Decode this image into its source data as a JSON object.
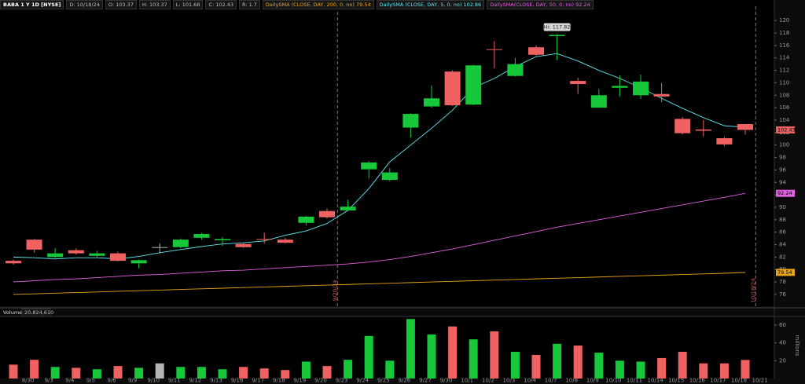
{
  "chart_data": [
    {
      "type": "candlestick",
      "title": "BABA 1 Y 1D [NYSE]",
      "date_label": "D: 10/18/24",
      "open_label": "O:",
      "high_label": "H:",
      "low_label": "L:",
      "close_label": "C:",
      "range_label": "R: 1.7",
      "hi_label": "Hi:",
      "events": [
        "9/20/24",
        "10/18/24"
      ],
      "categories": [
        null,
        "8/30",
        "9/3",
        "9/4",
        "9/5",
        "9/6",
        "9/9",
        "9/10",
        "9/11",
        "9/12",
        "9/13",
        "9/16",
        "9/17",
        "9/18",
        "9/19",
        "9/20",
        "9/23",
        "9/24",
        "9/25",
        "9/26",
        "9/27",
        "9/30",
        "10/1",
        "10/2",
        "10/3",
        "10/4",
        "10/7",
        "10/8",
        "10/9",
        "10/10",
        "10/11",
        "10/14",
        "10/15",
        "10/16",
        "10/17",
        "10/18",
        "10/21"
      ],
      "open": [
        81.4,
        84.8,
        82.0,
        83.1,
        82.2,
        82.6,
        81.0,
        83.6,
        83.6,
        85.1,
        84.7,
        84.1,
        84.9,
        84.8,
        87.5,
        89.4,
        89.5,
        96.1,
        94.4,
        102.8,
        106.2,
        111.8,
        106.5,
        115.4,
        111.1,
        115.7,
        117.5,
        110.3,
        106.0,
        109.2,
        108.0,
        108.2,
        104.2,
        102.5,
        101.1,
        103.37,
        null
      ],
      "high": [
        81.6,
        84.9,
        83.4,
        83.4,
        83.0,
        82.9,
        81.6,
        84.2,
        85.0,
        85.9,
        85.2,
        84.3,
        85.9,
        85.1,
        88.6,
        89.8,
        91.2,
        97.4,
        96.3,
        105.1,
        109.6,
        112.0,
        112.9,
        116.7,
        114.0,
        116.0,
        117.82,
        110.8,
        109.0,
        111.2,
        111.3,
        110.0,
        104.5,
        104.0,
        101.3,
        103.37,
        null
      ],
      "low": [
        80.8,
        82.7,
        81.9,
        82.4,
        81.9,
        81.3,
        80.2,
        82.6,
        83.4,
        84.8,
        83.8,
        83.5,
        84.2,
        84.2,
        87.1,
        88.2,
        89.4,
        94.6,
        94.2,
        101.2,
        106.0,
        106.3,
        106.4,
        112.3,
        111.0,
        114.3,
        113.6,
        108.2,
        106.0,
        107.8,
        107.4,
        106.9,
        101.7,
        101.4,
        99.8,
        101.68,
        null
      ],
      "close": [
        81.0,
        83.2,
        82.6,
        82.6,
        82.6,
        81.4,
        81.5,
        83.6,
        84.8,
        85.7,
        84.9,
        83.6,
        84.8,
        84.3,
        88.5,
        88.4,
        90.1,
        97.2,
        95.6,
        105.0,
        107.5,
        106.4,
        112.8,
        115.3,
        113.0,
        114.5,
        117.7,
        109.8,
        108.0,
        109.5,
        110.2,
        107.8,
        101.9,
        102.3,
        100.1,
        102.43,
        null
      ],
      "up_color": "#16c83a",
      "down_color": "#f06262",
      "neutral_color": "#b4b4b4",
      "series": [
        {
          "name": "DailySMA (CLOSE, DAY, 200, 0, no)",
          "color": "#e8a317",
          "values": [
            76.0,
            76.1,
            76.2,
            76.3,
            76.4,
            76.5,
            76.6,
            76.7,
            76.8,
            76.9,
            77.0,
            77.1,
            77.2,
            77.3,
            77.4,
            77.5,
            77.6,
            77.7,
            77.8,
            77.9,
            78.0,
            78.1,
            78.2,
            78.3,
            78.4,
            78.5,
            78.6,
            78.7,
            78.8,
            78.9,
            79.0,
            79.1,
            79.2,
            79.3,
            79.4,
            79.54,
            null
          ]
        },
        {
          "name": "DailySMA (CLOSE, DAY, 5, 0, no)",
          "color": "#5ee8f0",
          "values": [
            82.0,
            81.9,
            81.7,
            81.9,
            81.9,
            81.7,
            82.1,
            82.7,
            83.2,
            83.7,
            84.1,
            84.3,
            84.6,
            85.5,
            86.2,
            87.4,
            89.5,
            93.0,
            97.3,
            100.0,
            102.7,
            105.6,
            109.2,
            110.7,
            112.6,
            114.2,
            114.7,
            113.5,
            112.0,
            110.7,
            109.2,
            107.5,
            105.9,
            104.4,
            103.1,
            102.86,
            null
          ]
        },
        {
          "name": "DailySMA(CLOSE, DAY, 50, 0, no)",
          "color": "#e060e0",
          "values": [
            78.0,
            78.2,
            78.4,
            78.5,
            78.7,
            78.9,
            79.1,
            79.2,
            79.4,
            79.6,
            79.8,
            79.9,
            80.1,
            80.3,
            80.5,
            80.7,
            80.9,
            81.2,
            81.6,
            82.1,
            82.7,
            83.3,
            84.0,
            84.7,
            85.4,
            86.1,
            86.8,
            87.4,
            88.0,
            88.6,
            89.2,
            89.8,
            90.4,
            91.0,
            91.6,
            92.24,
            null
          ]
        }
      ],
      "ylim": [
        74.1,
        123.3
      ],
      "yticks": [
        76,
        78,
        80,
        82,
        84,
        86,
        88,
        90,
        92,
        94,
        96,
        98,
        100,
        102,
        104,
        106,
        108,
        110,
        112,
        114,
        116,
        118,
        120
      ]
    },
    {
      "type": "bar",
      "title": "Volume",
      "readout": "20,824,610",
      "axis_label": "millions",
      "values": [
        15.6,
        21,
        13,
        12,
        10.4,
        14,
        12,
        17,
        13,
        13,
        10.4,
        13,
        11.3,
        9.5,
        19,
        14,
        21,
        47.8,
        20,
        66.8,
        49.5,
        58.5,
        44,
        53,
        30,
        26.5,
        39,
        37,
        29,
        20,
        19,
        23,
        30,
        17,
        17,
        20.82461,
        null
      ],
      "ylim": [
        0,
        68.8
      ],
      "yticks": [
        20,
        40,
        60
      ]
    }
  ]
}
